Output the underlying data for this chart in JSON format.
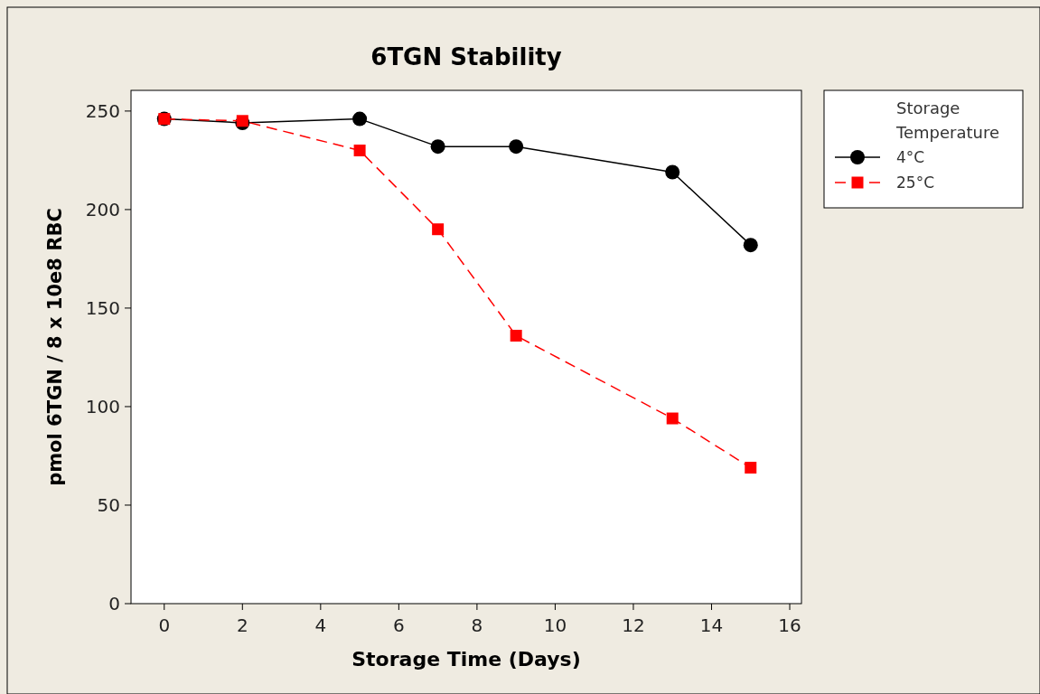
{
  "chart_data": {
    "type": "line",
    "title": "6TGN Stability",
    "xlabel": "Storage Time (Days)",
    "ylabel": "pmol  6TGN / 8 x 10e8 RBC",
    "legend_title": "Storage Temperature",
    "legend": "top right",
    "xlim": [
      -0.85,
      16.3
    ],
    "xticks": [
      0,
      2,
      4,
      6,
      8,
      10,
      12,
      14,
      16
    ],
    "ylim": [
      0,
      260.5
    ],
    "yticks": [
      0,
      50,
      100,
      150,
      200,
      250
    ],
    "grid": false,
    "series": [
      {
        "name": "4°C",
        "color": "#000000",
        "marker": "circle",
        "line_style": "solid",
        "x": [
          0,
          2,
          5,
          7,
          9,
          13,
          15
        ],
        "values": [
          246,
          244,
          246,
          232,
          232,
          219,
          182
        ]
      },
      {
        "name": "25°C",
        "color": "#ff0000",
        "marker": "square",
        "line_style": "dashed",
        "x": [
          0,
          2,
          5,
          7,
          9,
          13,
          15
        ],
        "values": [
          246,
          245,
          230,
          190,
          136,
          94,
          69
        ]
      }
    ]
  }
}
